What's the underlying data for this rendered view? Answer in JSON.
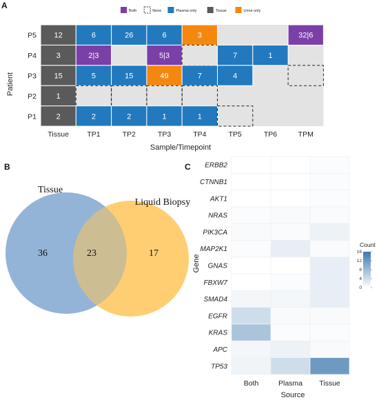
{
  "panels": {
    "a": "A",
    "b": "B",
    "c": "C"
  },
  "colors": {
    "both": "#7B3FA8",
    "plasma": "#2279BE",
    "tissue": "#5A5A5A",
    "urine": "#F5870F",
    "none": "#E3E3E3",
    "venn_tissue": "#8FB2D6",
    "venn_liquid": "#FFC55A",
    "heat_low": "#FFFFFF",
    "heat_high": "#3D78AE"
  },
  "chart_data": [
    {
      "type": "heatmap",
      "xlabel": "Sample/Timepoint",
      "ylabel": "Patient",
      "columns": [
        "Tissue",
        "TP1",
        "TP2",
        "TP3",
        "TP4",
        "TP5",
        "TP6",
        "TPM"
      ],
      "rows": [
        "P5",
        "P4",
        "P3",
        "P2",
        "P1"
      ],
      "legend": [
        {
          "key": "both",
          "label": "Both"
        },
        {
          "key": "none",
          "label": "None"
        },
        {
          "key": "plasma",
          "label": "Plasma only"
        },
        {
          "key": "tissue",
          "label": "Tissue"
        },
        {
          "key": "urine",
          "label": "Urine only"
        }
      ],
      "cells": [
        [
          {
            "t": "tissue",
            "v": "12"
          },
          {
            "t": "plasma",
            "v": "6"
          },
          {
            "t": "plasma",
            "v": "26"
          },
          {
            "t": "plasma",
            "v": "6"
          },
          {
            "t": "urine",
            "v": "3"
          },
          {
            "t": "empty",
            "v": ""
          },
          {
            "t": "empty",
            "v": ""
          },
          {
            "t": "both",
            "v": "32|6"
          }
        ],
        [
          {
            "t": "tissue",
            "v": "3"
          },
          {
            "t": "both",
            "v": "2|3"
          },
          {
            "t": "empty",
            "v": ""
          },
          {
            "t": "both",
            "v": "5|3"
          },
          {
            "t": "none",
            "v": ""
          },
          {
            "t": "plasma",
            "v": "7"
          },
          {
            "t": "plasma",
            "v": "1"
          },
          {
            "t": "empty",
            "v": ""
          }
        ],
        [
          {
            "t": "tissue",
            "v": "15"
          },
          {
            "t": "plasma",
            "v": "5"
          },
          {
            "t": "plasma",
            "v": "15"
          },
          {
            "t": "urine",
            "v": "49"
          },
          {
            "t": "plasma",
            "v": "7"
          },
          {
            "t": "plasma",
            "v": "4"
          },
          {
            "t": "empty",
            "v": ""
          },
          {
            "t": "none",
            "v": ""
          }
        ],
        [
          {
            "t": "tissue",
            "v": "1"
          },
          {
            "t": "none",
            "v": ""
          },
          {
            "t": "none",
            "v": ""
          },
          {
            "t": "none",
            "v": ""
          },
          {
            "t": "none",
            "v": ""
          },
          {
            "t": "empty",
            "v": ""
          },
          {
            "t": "empty",
            "v": ""
          },
          {
            "t": "empty",
            "v": ""
          }
        ],
        [
          {
            "t": "tissue",
            "v": "2"
          },
          {
            "t": "plasma",
            "v": "2"
          },
          {
            "t": "plasma",
            "v": "2"
          },
          {
            "t": "plasma",
            "v": "1"
          },
          {
            "t": "plasma",
            "v": "1"
          },
          {
            "t": "none",
            "v": ""
          },
          {
            "t": "empty",
            "v": ""
          },
          {
            "t": "empty",
            "v": ""
          }
        ]
      ]
    },
    {
      "type": "venn",
      "sets": [
        {
          "name": "Tissue",
          "only": 36
        },
        {
          "name": "Liquid Biopsy",
          "only": 17
        }
      ],
      "intersection": 23
    },
    {
      "type": "heatmap",
      "xlabel": "Source",
      "ylabel": "Gene",
      "columns": [
        "Both",
        "Plasma",
        "Tissue"
      ],
      "rows": [
        "ERBB2",
        "CTNNB1",
        "AKT1",
        "NRAS",
        "PIK3CA",
        "MAP2K1",
        "GNAS",
        "FBXW7",
        "SMAD4",
        "EGFR",
        "KRAS",
        "APC",
        "TP53"
      ],
      "values": [
        [
          0,
          0,
          0.3
        ],
        [
          0,
          0,
          0.3
        ],
        [
          0,
          0,
          0.3
        ],
        [
          0.3,
          0.6,
          0.5
        ],
        [
          0.6,
          0.5,
          1.5
        ],
        [
          0.3,
          2,
          0.5
        ],
        [
          0,
          0,
          2
        ],
        [
          0,
          0.3,
          2
        ],
        [
          1,
          1,
          2
        ],
        [
          4,
          0.6,
          0.6
        ],
        [
          7,
          0.3,
          0.3
        ],
        [
          1,
          1.5,
          0.6
        ],
        [
          1.3,
          4,
          12
        ]
      ],
      "colorbar": {
        "title": "Count",
        "min": 0,
        "max": 16,
        "ticks": [
          0,
          4,
          8,
          12,
          16
        ]
      }
    }
  ]
}
